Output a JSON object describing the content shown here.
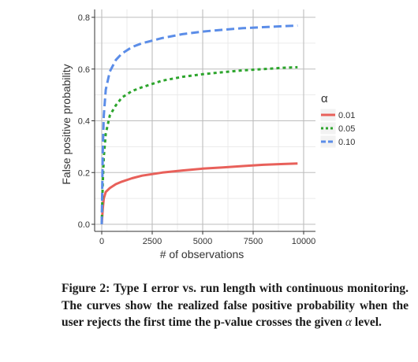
{
  "chart_data": {
    "type": "line",
    "xlabel": "# of observations",
    "ylabel": "False positive probability",
    "xlim": [
      0,
      10000
    ],
    "ylim": [
      0,
      0.8
    ],
    "xticks": [
      0,
      2500,
      5000,
      7500,
      10000
    ],
    "yticks": [
      0.0,
      0.2,
      0.4,
      0.6,
      0.8
    ],
    "xtick_labels": [
      "0",
      "2500",
      "5000",
      "7500",
      "10000"
    ],
    "ytick_labels": [
      "0.0",
      "0.2",
      "0.4",
      "0.6",
      "0.8"
    ],
    "grid": true,
    "legend_title": "α",
    "legend_position": "right",
    "series": [
      {
        "name": "0.01",
        "color": "#e8605a",
        "dash": "solid",
        "x": [
          0,
          50,
          100,
          200,
          400,
          700,
          1000,
          1500,
          2000,
          3000,
          4000,
          5000,
          6000,
          7000,
          8000,
          9000,
          9700
        ],
        "y": [
          0.0,
          0.06,
          0.1,
          0.125,
          0.14,
          0.155,
          0.165,
          0.178,
          0.188,
          0.2,
          0.208,
          0.215,
          0.22,
          0.225,
          0.23,
          0.233,
          0.235
        ]
      },
      {
        "name": "0.05",
        "color": "#2da52d",
        "dash": "dotted",
        "x": [
          0,
          50,
          100,
          200,
          400,
          700,
          1000,
          1500,
          2000,
          3000,
          4000,
          5000,
          6000,
          7000,
          8000,
          9000,
          9700
        ],
        "y": [
          0.0,
          0.16,
          0.26,
          0.35,
          0.42,
          0.46,
          0.49,
          0.515,
          0.53,
          0.555,
          0.57,
          0.58,
          0.588,
          0.595,
          0.6,
          0.605,
          0.607
        ]
      },
      {
        "name": "0.10",
        "color": "#5b8de8",
        "dash": "dashed",
        "x": [
          0,
          50,
          100,
          200,
          400,
          700,
          1000,
          1500,
          2000,
          3000,
          4000,
          5000,
          6000,
          7000,
          8000,
          9000,
          9700
        ],
        "y": [
          0.0,
          0.28,
          0.42,
          0.52,
          0.59,
          0.635,
          0.66,
          0.685,
          0.7,
          0.72,
          0.735,
          0.745,
          0.752,
          0.758,
          0.762,
          0.766,
          0.768
        ]
      }
    ]
  },
  "caption": {
    "label": "Figure 2: Type I error vs. run length with continuous monitoring.",
    "text_before_alpha": "The curves show the realized false positive probability when the user rejects the first time the p-value crosses the given",
    "alpha_symbol": "α",
    "text_after_alpha": "level."
  }
}
